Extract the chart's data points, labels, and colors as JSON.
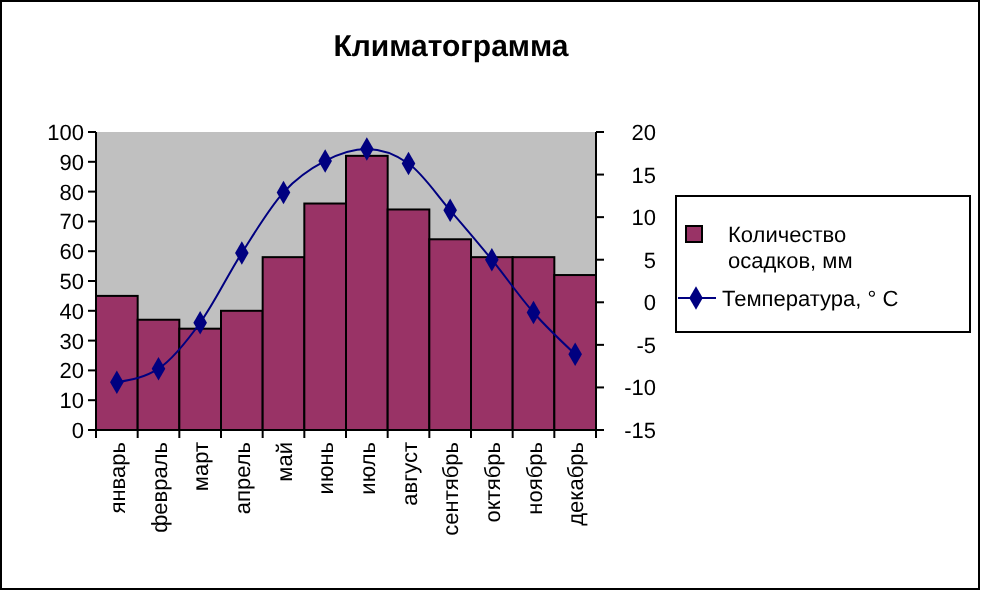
{
  "chart_data": {
    "type": "bar",
    "title": "Климатограмма",
    "categories": [
      "январь",
      "февраль",
      "март",
      "апрель",
      "май",
      "июнь",
      "июль",
      "август",
      "сентябрь",
      "октябрь",
      "ноябрь",
      "декабрь"
    ],
    "series": [
      {
        "name": "Количество осадков, мм",
        "color": "#993366",
        "values": [
          45,
          37,
          34,
          40,
          58,
          76,
          92,
          74,
          64,
          58,
          58,
          52
        ]
      },
      {
        "name": "Температура, ° С",
        "type": "line",
        "axis": "y2",
        "color": "#000080",
        "marker": "diamond",
        "values": [
          -9.4,
          -7.8,
          -2.4,
          5.8,
          12.9,
          16.6,
          18,
          16.3,
          10.8,
          5,
          -1.2,
          -6.1
        ]
      }
    ],
    "ylim": [
      0,
      100
    ],
    "yticks": [
      0,
      10,
      20,
      30,
      40,
      50,
      60,
      70,
      80,
      90,
      100
    ],
    "y2lim": [
      -15,
      20
    ],
    "y2ticks": [
      -15,
      -10,
      -5,
      0,
      5,
      10,
      15,
      20
    ],
    "grid": false,
    "legend": "right"
  }
}
